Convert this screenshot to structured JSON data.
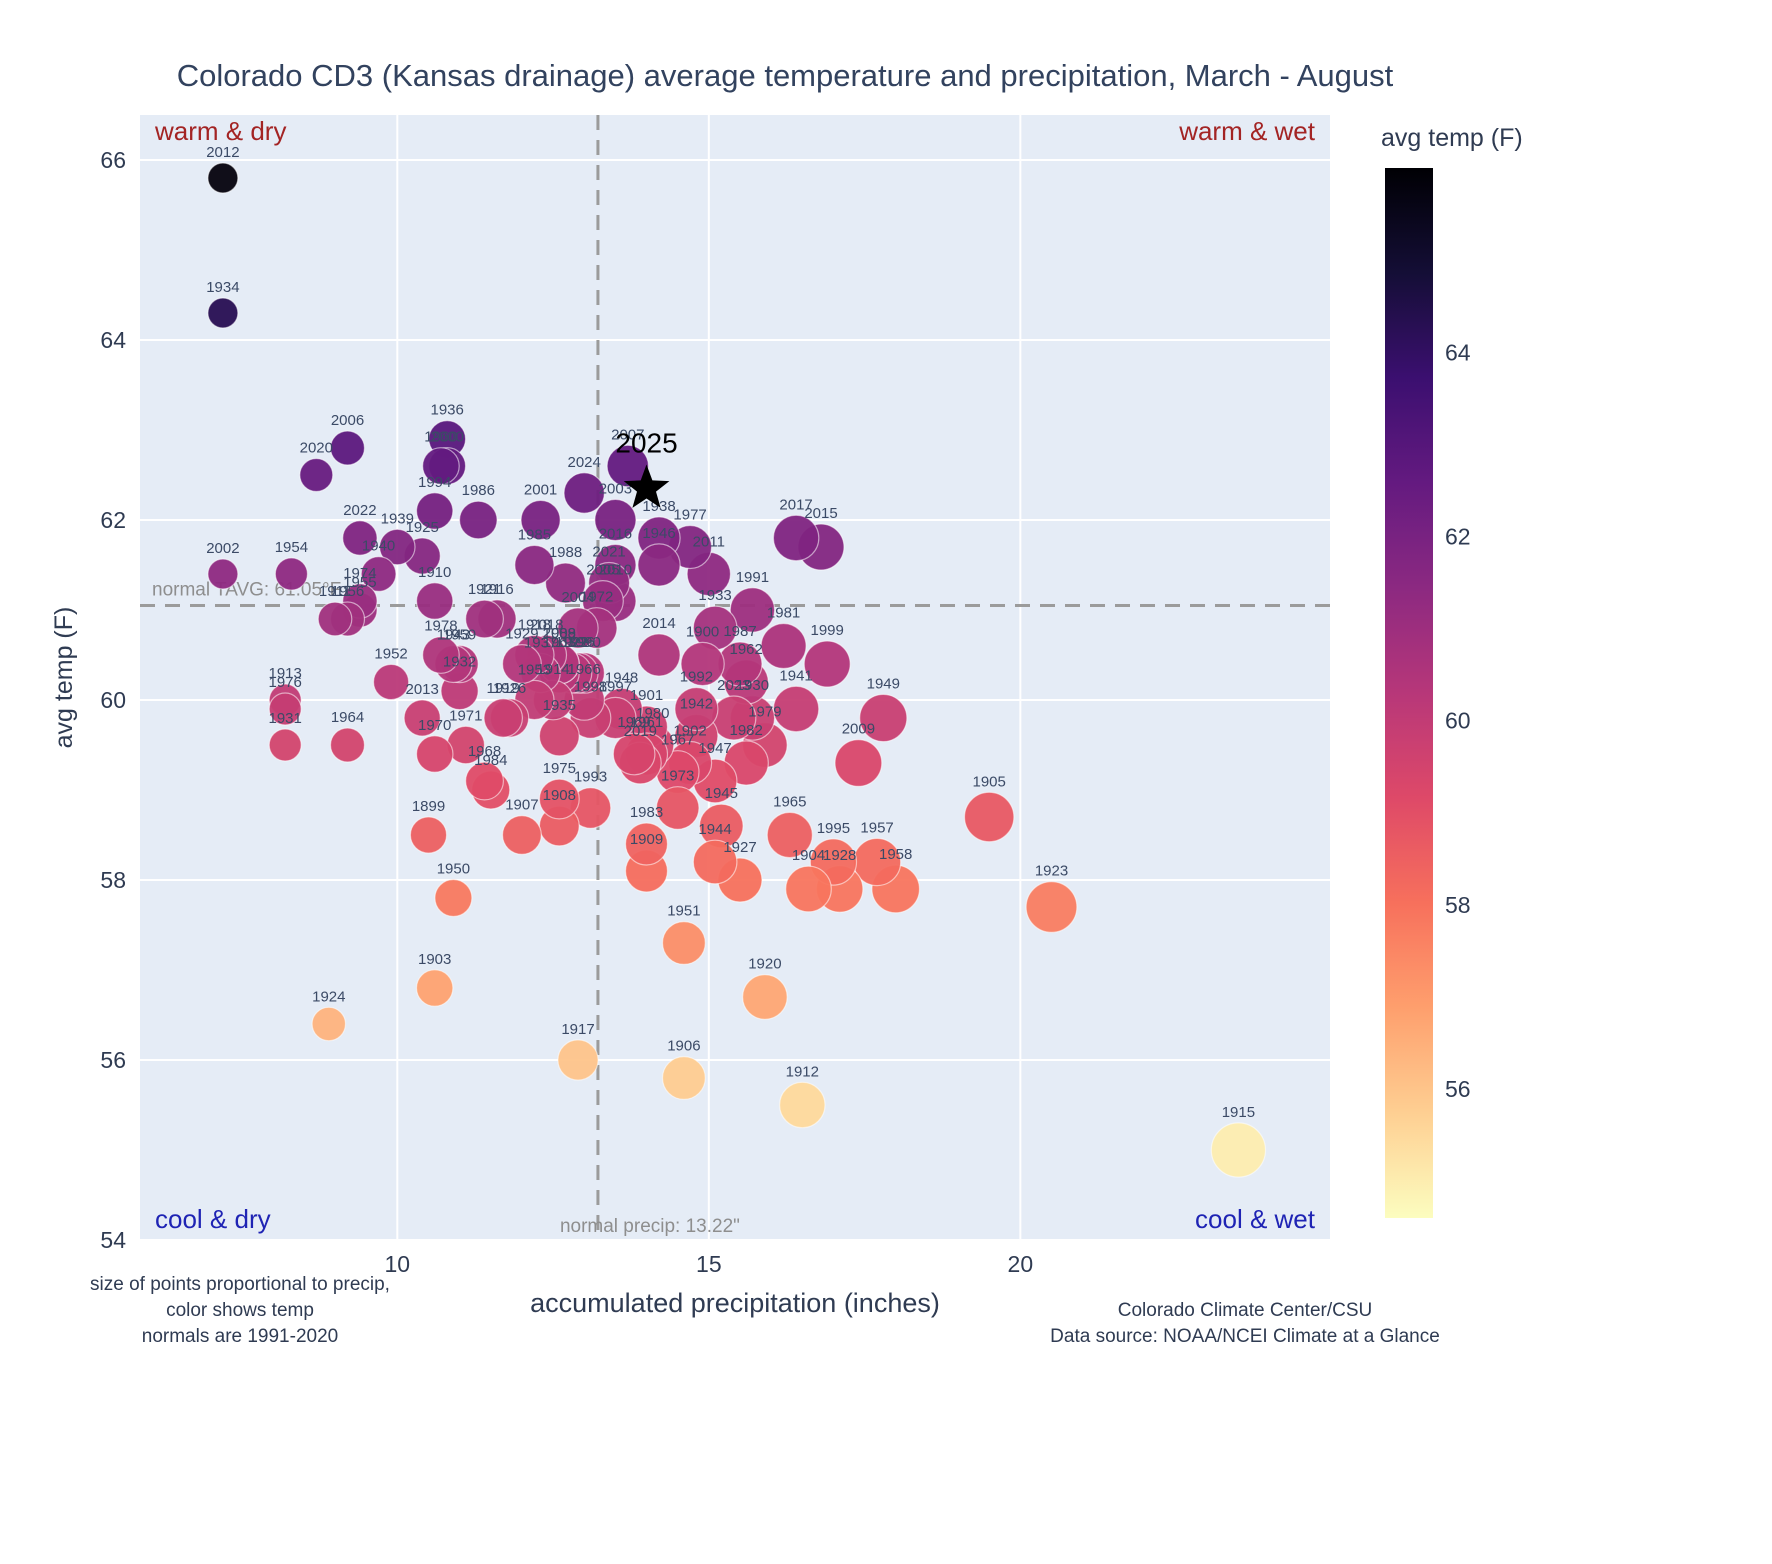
{
  "chart_data": {
    "type": "scatter",
    "title": "Colorado CD3 (Kansas drainage) average temperature and precipitation, March - August",
    "xlabel": "accumulated precipitation (inches)",
    "ylabel": "avg temp (F)",
    "xlim": [
      5.87,
      24.97
    ],
    "ylim": [
      54,
      66.5
    ],
    "xticks": [
      10,
      15,
      20
    ],
    "yticks": [
      54,
      56,
      58,
      60,
      62,
      64,
      66
    ],
    "grid": true,
    "plot_bg": "#e5ecf6",
    "grid_color": "#ffffff",
    "tick_color": "#2f3b52",
    "label_color": "#3b4a66",
    "colorbar": {
      "title": "avg temp (F)",
      "ticks": [
        56,
        58,
        60,
        62,
        64
      ],
      "min": 54.6,
      "max": 66.0
    },
    "ref_lines": {
      "vertical": {
        "value": 13.22,
        "label": "normal precip: 13.22\""
      },
      "horizontal": {
        "value": 61.05,
        "label": "normal TAVG: 61.05°F"
      },
      "color": "#9b9b9b",
      "label_color": "#8e8e8e"
    },
    "quadrant_labels": {
      "top_left": "warm & dry",
      "top_right": "warm & wet",
      "bottom_left": "cool & dry",
      "bottom_right": "cool & wet",
      "warm_color": "#a32424",
      "cool_color": "#1f24b4"
    },
    "highlight": {
      "year": "2025",
      "precip": 14.0,
      "temp": 62.35,
      "marker": "star",
      "color": "#000000"
    },
    "size_rule": "area proportional to precip",
    "points": [
      [
        1899,
        10.5,
        58.5
      ],
      [
        1900,
        14.9,
        60.4
      ],
      [
        1901,
        14.0,
        59.7
      ],
      [
        1902,
        14.7,
        59.3
      ],
      [
        1903,
        10.6,
        56.8
      ],
      [
        1904,
        16.6,
        57.9
      ],
      [
        1905,
        19.5,
        58.7
      ],
      [
        1906,
        14.6,
        55.8
      ],
      [
        1907,
        12.0,
        58.5
      ],
      [
        1908,
        12.6,
        58.6
      ],
      [
        1909,
        14.0,
        58.1
      ],
      [
        1910,
        10.6,
        61.1
      ],
      [
        1911,
        9.0,
        60.9
      ],
      [
        1912,
        16.5,
        55.5
      ],
      [
        1913,
        8.2,
        60.0
      ],
      [
        1914,
        12.5,
        60.0
      ],
      [
        1915,
        23.5,
        55.0
      ],
      [
        1916,
        11.6,
        60.9
      ],
      [
        1917,
        12.9,
        56.0
      ],
      [
        1918,
        12.2,
        60.5
      ],
      [
        1919,
        11.7,
        59.8
      ],
      [
        1920,
        15.9,
        56.7
      ],
      [
        1921,
        11.4,
        60.9
      ],
      [
        1922,
        12.8,
        60.3
      ],
      [
        1923,
        20.5,
        57.7
      ],
      [
        1924,
        8.9,
        56.4
      ],
      [
        1925,
        10.4,
        61.6
      ],
      [
        1926,
        11.8,
        59.8
      ],
      [
        1927,
        15.5,
        58.0
      ],
      [
        1928,
        17.1,
        57.9
      ],
      [
        1929,
        12.0,
        60.4
      ],
      [
        1930,
        15.7,
        59.8
      ],
      [
        1931,
        8.2,
        59.5
      ],
      [
        1932,
        11.0,
        60.1
      ],
      [
        1933,
        15.1,
        60.8
      ],
      [
        1934,
        7.2,
        64.3
      ],
      [
        1935,
        12.6,
        59.6
      ],
      [
        1936,
        10.8,
        62.9
      ],
      [
        1937,
        12.3,
        60.3
      ],
      [
        1938,
        14.2,
        61.8
      ],
      [
        1939,
        10.0,
        61.7
      ],
      [
        1940,
        9.7,
        61.4
      ],
      [
        1941,
        16.4,
        59.9
      ],
      [
        1942,
        14.8,
        59.6
      ],
      [
        1943,
        10.9,
        60.4
      ],
      [
        1944,
        15.1,
        58.2
      ],
      [
        1945,
        15.2,
        58.6
      ],
      [
        1946,
        14.2,
        61.5
      ],
      [
        1947,
        15.1,
        59.1
      ],
      [
        1948,
        13.6,
        59.9
      ],
      [
        1949,
        17.8,
        59.8
      ],
      [
        1950,
        10.9,
        57.8
      ],
      [
        1951,
        14.6,
        57.3
      ],
      [
        1952,
        9.9,
        60.2
      ],
      [
        1953,
        12.2,
        60.0
      ],
      [
        1954,
        8.3,
        61.4
      ],
      [
        1955,
        9.4,
        61.0
      ],
      [
        1956,
        9.2,
        60.9
      ],
      [
        1957,
        17.7,
        58.2
      ],
      [
        1958,
        18.0,
        57.9
      ],
      [
        1959,
        11.0,
        60.4
      ],
      [
        1960,
        10.7,
        62.6
      ],
      [
        1961,
        14.0,
        59.4
      ],
      [
        1962,
        15.6,
        60.2
      ],
      [
        1963,
        12.6,
        60.3
      ],
      [
        1964,
        9.2,
        59.5
      ],
      [
        1965,
        16.3,
        58.5
      ],
      [
        1966,
        13.0,
        60.0
      ],
      [
        1967,
        14.5,
        59.2
      ],
      [
        1968,
        11.4,
        59.1
      ],
      [
        1969,
        13.8,
        59.4
      ],
      [
        1970,
        10.6,
        59.4
      ],
      [
        1971,
        11.1,
        59.5
      ],
      [
        1972,
        13.2,
        60.8
      ],
      [
        1973,
        14.5,
        58.8
      ],
      [
        1974,
        9.4,
        61.1
      ],
      [
        1975,
        12.6,
        58.9
      ],
      [
        1976,
        8.2,
        59.9
      ],
      [
        1977,
        14.7,
        61.7
      ],
      [
        1978,
        10.7,
        60.5
      ],
      [
        1979,
        15.9,
        59.5
      ],
      [
        1980,
        14.1,
        59.5
      ],
      [
        1981,
        16.2,
        60.6
      ],
      [
        1982,
        15.6,
        59.3
      ],
      [
        1983,
        14.0,
        58.4
      ],
      [
        1984,
        11.5,
        59.0
      ],
      [
        1985,
        12.2,
        61.5
      ],
      [
        1986,
        11.3,
        62.0
      ],
      [
        1987,
        15.5,
        60.4
      ],
      [
        1988,
        12.7,
        61.3
      ],
      [
        1989,
        12.6,
        60.4
      ],
      [
        1990,
        13.0,
        60.3
      ],
      [
        1991,
        15.7,
        61.0
      ],
      [
        1992,
        14.8,
        59.9
      ],
      [
        1993,
        13.1,
        58.8
      ],
      [
        1994,
        10.6,
        62.1
      ],
      [
        1995,
        17.0,
        58.2
      ],
      [
        1996,
        12.9,
        60.3
      ],
      [
        1997,
        13.5,
        59.8
      ],
      [
        1998,
        13.1,
        59.8
      ],
      [
        1999,
        16.9,
        60.4
      ],
      [
        2000,
        10.8,
        62.6
      ],
      [
        2001,
        12.3,
        62.0
      ],
      [
        2002,
        7.2,
        61.4
      ],
      [
        2003,
        13.5,
        62.0
      ],
      [
        2004,
        12.9,
        60.8
      ],
      [
        2005,
        13.3,
        61.1
      ],
      [
        2006,
        9.2,
        62.8
      ],
      [
        2007,
        13.7,
        62.6
      ],
      [
        2008,
        12.6,
        60.4
      ],
      [
        2009,
        17.4,
        59.3
      ],
      [
        2010,
        13.5,
        61.1
      ],
      [
        2011,
        15.0,
        61.4
      ],
      [
        2012,
        7.2,
        65.8
      ],
      [
        2013,
        10.4,
        59.8
      ],
      [
        2014,
        14.2,
        60.5
      ],
      [
        2015,
        16.8,
        61.7
      ],
      [
        2016,
        13.5,
        61.5
      ],
      [
        2017,
        16.4,
        61.8
      ],
      [
        2018,
        12.4,
        60.5
      ],
      [
        2019,
        13.9,
        59.3
      ],
      [
        2020,
        8.7,
        62.5
      ],
      [
        2021,
        13.4,
        61.3
      ],
      [
        2022,
        9.4,
        61.8
      ],
      [
        2023,
        15.4,
        59.8
      ],
      [
        2024,
        13.0,
        62.3
      ]
    ]
  },
  "captions": {
    "left_lines": [
      "size of points proportional to precip,",
      "color shows temp",
      "normals are 1991-2020"
    ],
    "right_lines": [
      "Colorado Climate Center/CSU",
      "Data source: NOAA/NCEI Climate at a Glance"
    ]
  }
}
